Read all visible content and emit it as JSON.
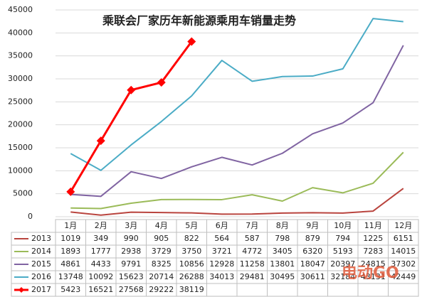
{
  "chart_data": {
    "type": "line",
    "title": "乘联会厂家历年新能源乘用车销量走势",
    "categories": [
      "1月",
      "2月",
      "3月",
      "4月",
      "5月",
      "6月",
      "7月",
      "8月",
      "9月",
      "10月",
      "11月",
      "12月"
    ],
    "ylim": [
      0,
      45000
    ],
    "yticks": [
      0,
      5000,
      10000,
      15000,
      20000,
      25000,
      30000,
      35000,
      40000,
      45000
    ],
    "grid": true,
    "watermark": "电动GO",
    "series": [
      {
        "name": "2013",
        "color": "#b9443e",
        "values": [
          1019,
          349,
          990,
          905,
          822,
          564,
          587,
          798,
          879,
          794,
          1225,
          6151
        ]
      },
      {
        "name": "2014",
        "color": "#9bbb59",
        "values": [
          1893,
          1777,
          2938,
          3729,
          3750,
          3721,
          4772,
          3405,
          6320,
          5193,
          7283,
          14015
        ]
      },
      {
        "name": "2015",
        "color": "#8064a2",
        "values": [
          4861,
          4433,
          9791,
          8325,
          10856,
          12928,
          11258,
          13801,
          18047,
          20397,
          24815,
          37302
        ]
      },
      {
        "name": "2016",
        "color": "#4bacc6",
        "values": [
          13748,
          10092,
          15623,
          20714,
          26288,
          34013,
          29481,
          30495,
          30611,
          32184,
          43131,
          42449
        ]
      },
      {
        "name": "2017",
        "color": "#ff0000",
        "marker": "diamond",
        "values": [
          5423,
          16521,
          27568,
          29222,
          38119,
          null,
          null,
          null,
          null,
          null,
          null,
          null
        ]
      }
    ]
  }
}
